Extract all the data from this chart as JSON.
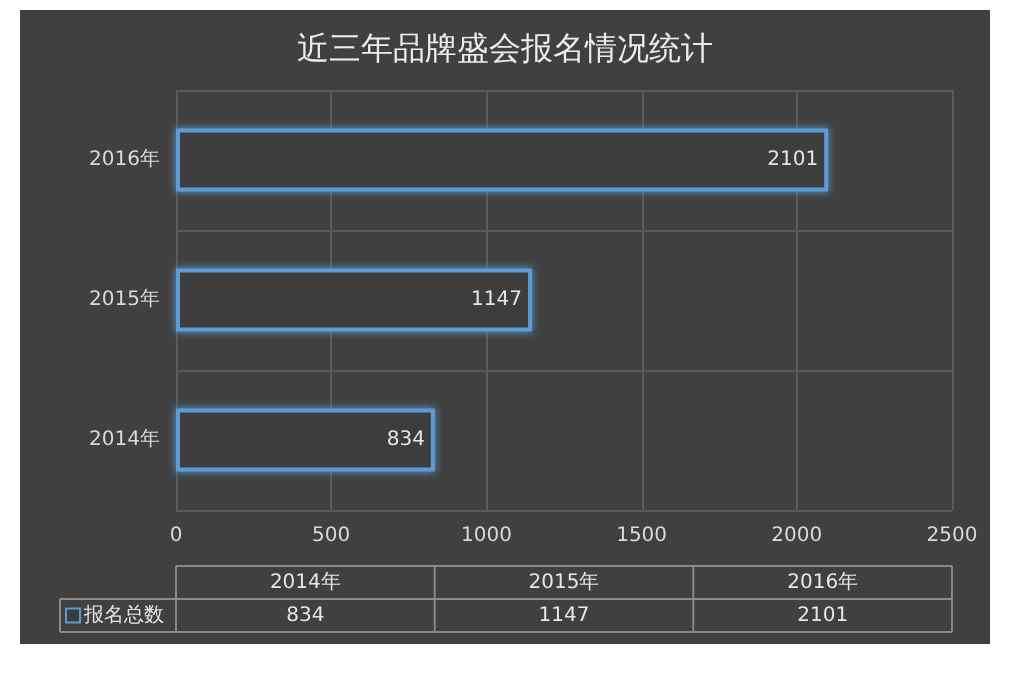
{
  "chart_data": {
    "type": "bar",
    "orientation": "horizontal",
    "title": "近三年品牌盛会报名情况统计",
    "categories": [
      "2016年",
      "2015年",
      "2014年"
    ],
    "series": [
      {
        "name": "报名总数",
        "color": "#5b9bd5",
        "values": [
          2101,
          1147,
          834
        ]
      }
    ],
    "xlim": [
      0,
      2500
    ],
    "xticks": [
      0,
      500,
      1000,
      1500,
      2000,
      2500
    ],
    "annotations": [
      "834",
      "1147",
      "2101"
    ],
    "grid": true,
    "data_labels": true,
    "legend": "bottom"
  }
}
